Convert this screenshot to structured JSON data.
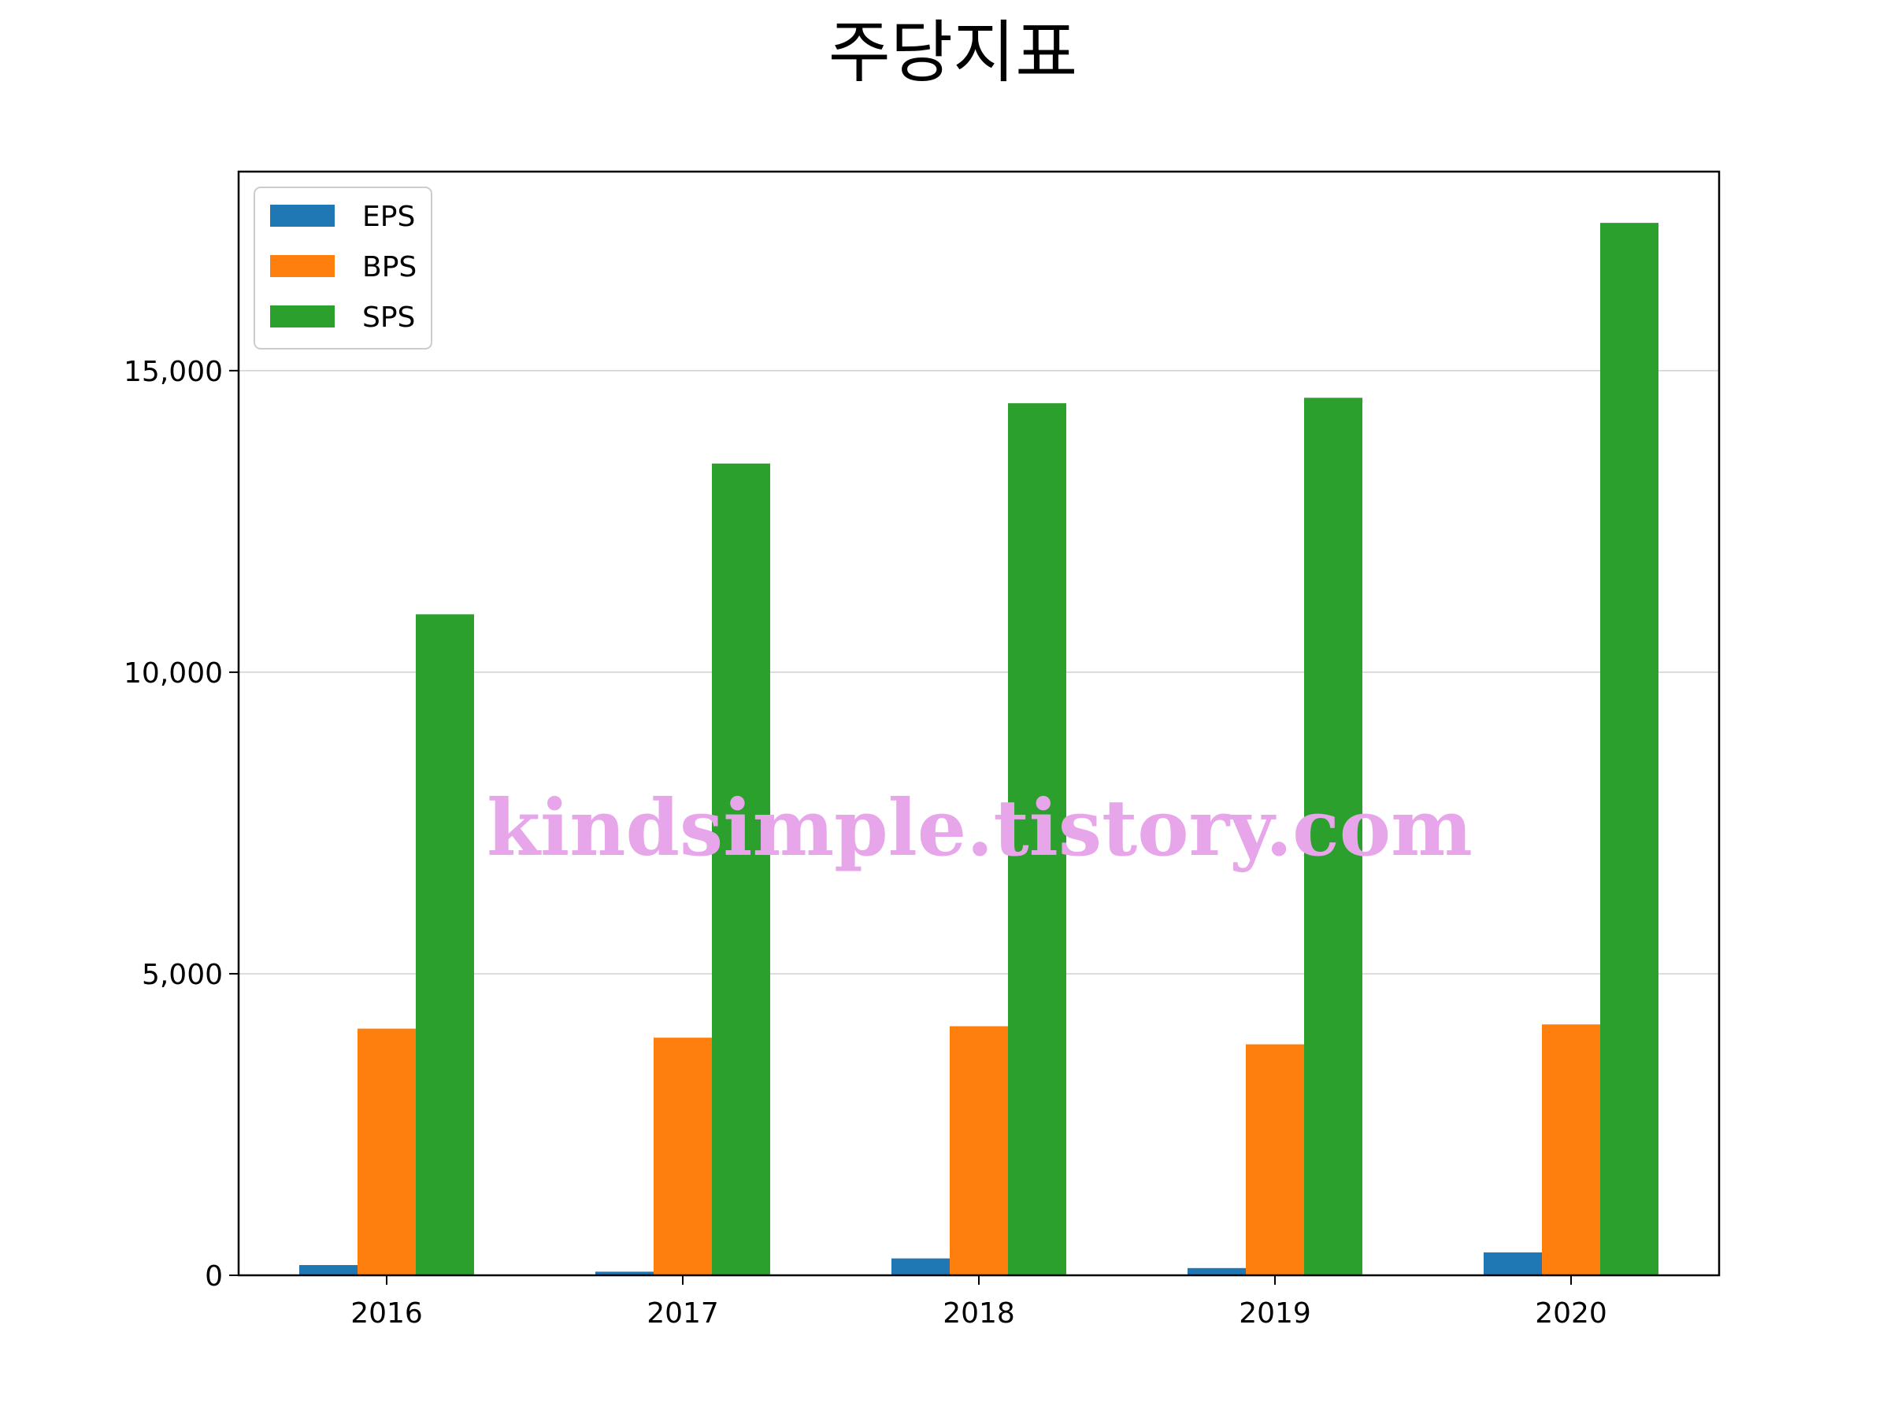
{
  "chart_data": {
    "type": "bar",
    "title": "주당지표",
    "xlabel": "",
    "ylabel": "",
    "categories": [
      "2016",
      "2017",
      "2018",
      "2019",
      "2020"
    ],
    "series": [
      {
        "name": "EPS",
        "color": "#1f77b4",
        "values": [
          170,
          60,
          280,
          120,
          380
        ]
      },
      {
        "name": "BPS",
        "color": "#ff7f0e",
        "values": [
          4090,
          3940,
          4130,
          3830,
          4160
        ]
      },
      {
        "name": "SPS",
        "color": "#2ca02c",
        "values": [
          10960,
          13460,
          14460,
          14550,
          17450
        ]
      }
    ],
    "ylim": [
      0,
      18300
    ],
    "yticks": [
      0,
      5000,
      10000,
      15000
    ],
    "ytick_labels": [
      "0",
      "5,000",
      "10,000",
      "15,000"
    ],
    "grid": "horizontal",
    "legend": "top-left",
    "watermark": "kindsimple.tistory.com"
  }
}
